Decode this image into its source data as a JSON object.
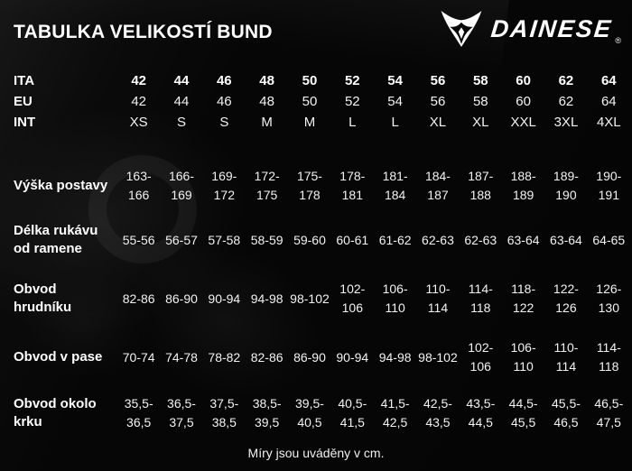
{
  "page": {
    "title": "TABULKA VELIKOSTÍ BUND",
    "footer": "Míry jsou uváděny v cm.",
    "logo": {
      "brand": "DAINESE",
      "registered": "®"
    }
  },
  "colors": {
    "background": "#060606",
    "text": "#f2f2f2",
    "bold_text": "#ffffff"
  },
  "table": {
    "size_rows": [
      {
        "label": "ITA",
        "bold": true,
        "values": [
          "42",
          "44",
          "46",
          "48",
          "50",
          "52",
          "54",
          "56",
          "58",
          "60",
          "62",
          "64"
        ]
      },
      {
        "label": "EU",
        "bold": false,
        "values": [
          "42",
          "44",
          "46",
          "48",
          "50",
          "52",
          "54",
          "56",
          "58",
          "60",
          "62",
          "64"
        ]
      },
      {
        "label": "INT",
        "bold": false,
        "values": [
          "XS",
          "S",
          "S",
          "M",
          "M",
          "L",
          "L",
          "XL",
          "XL",
          "XXL",
          "3XL",
          "4XL"
        ]
      }
    ],
    "measure_rows": [
      {
        "label": "Výška postavy",
        "values": [
          "163-\n166",
          "166-\n169",
          "169-\n172",
          "172-\n175",
          "175-\n178",
          "178-\n181",
          "181-\n184",
          "184-\n187",
          "187-\n188",
          "188-\n189",
          "189-\n190",
          "190-\n191"
        ]
      },
      {
        "label": "Délka rukávu od ramene",
        "values": [
          "55-56",
          "56-57",
          "57-58",
          "58-59",
          "59-60",
          "60-61",
          "61-62",
          "62-63",
          "62-63",
          "63-64",
          "63-64",
          "64-65"
        ]
      },
      {
        "label": "Obvod hrudníku",
        "values": [
          "82-86",
          "86-90",
          "90-94",
          "94-98",
          "98-102",
          "102-\n106",
          "106-\n110",
          "110-\n114",
          "114-\n118",
          "118-\n122",
          "122-\n126",
          "126-\n130"
        ]
      },
      {
        "label": "Obvod v pase",
        "values": [
          "70-74",
          "74-78",
          "78-82",
          "82-86",
          "86-90",
          "90-94",
          "94-98",
          "98-102",
          "102-\n106",
          "106-\n110",
          "110-\n114",
          "114-\n118"
        ]
      },
      {
        "label": "Obvod okolo krku",
        "values": [
          "35,5-\n36,5",
          "36,5-\n37,5",
          "37,5-\n38,5",
          "38,5-\n39,5",
          "39,5-\n40,5",
          "40,5-\n41,5",
          "41,5-\n42,5",
          "42,5-\n43,5",
          "43,5-\n44,5",
          "44,5-\n45,5",
          "45,5-\n46,5",
          "46,5-\n47,5"
        ]
      }
    ]
  }
}
